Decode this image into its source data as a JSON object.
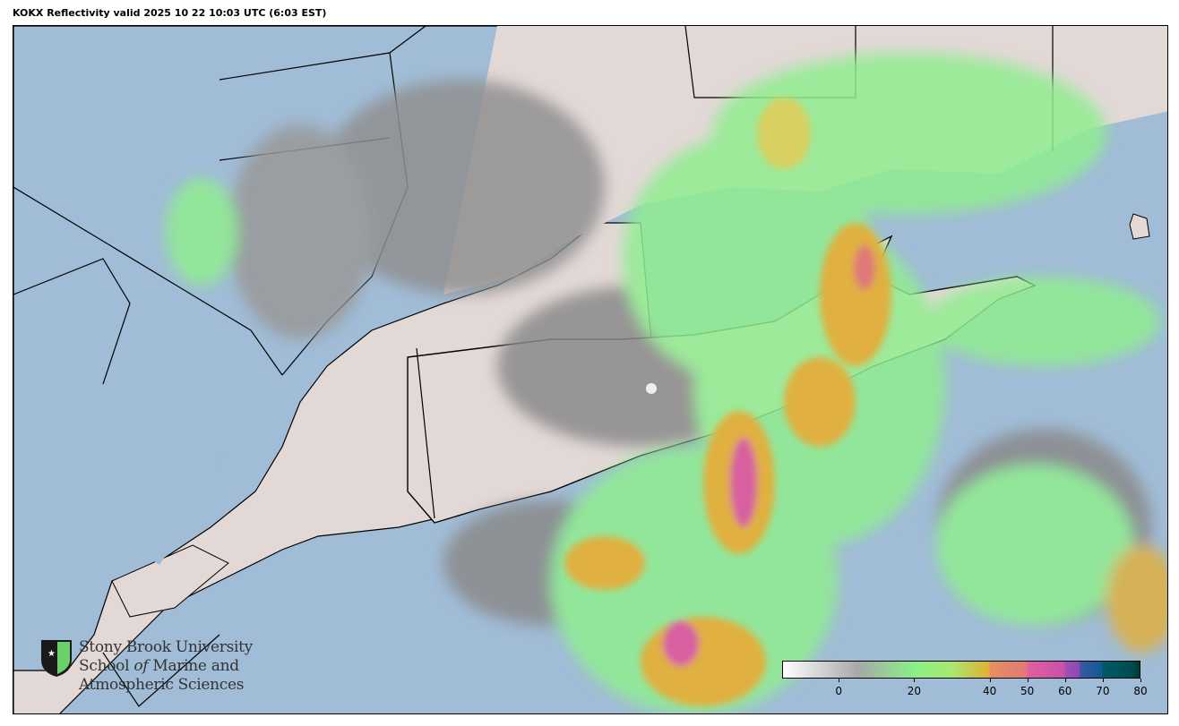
{
  "title": "KOKX Reflectivity valid 2025 10 22 10:03 UTC (6:03 EST)",
  "logo": {
    "line1": "Stony Brook University",
    "line2a": "School ",
    "line2b": "of",
    "line2c": " Marine and",
    "line3": "Atmospheric Sciences"
  },
  "colorbar": {
    "min": -15,
    "max": 80,
    "ticks": [
      "0",
      "20",
      "40",
      "50",
      "60",
      "70",
      "80"
    ],
    "tick_values": [
      0,
      20,
      40,
      50,
      60,
      70,
      80
    ],
    "units_label": "",
    "stops": [
      {
        "v": -15,
        "c": "#ffffff"
      },
      {
        "v": 5,
        "c": "#a8a8a8"
      },
      {
        "v": 20,
        "c": "#88f088"
      },
      {
        "v": 30,
        "c": "#a8e870"
      },
      {
        "v": 40,
        "c": "#e0b030"
      },
      {
        "v": 40.1,
        "c": "#e89060"
      },
      {
        "v": 50,
        "c": "#e07878"
      },
      {
        "v": 50.1,
        "c": "#e060a0"
      },
      {
        "v": 60,
        "c": "#c850a8"
      },
      {
        "v": 60.1,
        "c": "#a050b8"
      },
      {
        "v": 64,
        "c": "#9048b0"
      },
      {
        "v": 64.1,
        "c": "#3a58a8"
      },
      {
        "v": 70,
        "c": "#105a90"
      },
      {
        "v": 70.1,
        "c": "#005a6a"
      },
      {
        "v": 78,
        "c": "#004a50"
      },
      {
        "v": 80,
        "c": "#003a30"
      }
    ]
  },
  "colors": {
    "water": "#a0bcd6",
    "land": "#e2d8d6",
    "echo_light": "#90ee90",
    "echo_mod": "#e0b040",
    "echo_heavy": "#d860a0"
  }
}
